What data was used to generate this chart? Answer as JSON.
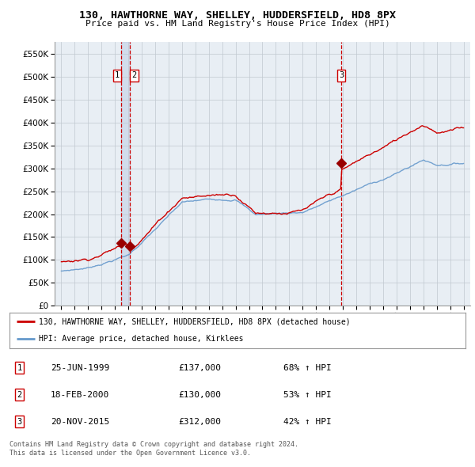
{
  "title": "130, HAWTHORNE WAY, SHELLEY, HUDDERSFIELD, HD8 8PX",
  "subtitle": "Price paid vs. HM Land Registry's House Price Index (HPI)",
  "legend_label_red": "130, HAWTHORNE WAY, SHELLEY, HUDDERSFIELD, HD8 8PX (detached house)",
  "legend_label_blue": "HPI: Average price, detached house, Kirklees",
  "footer1": "Contains HM Land Registry data © Crown copyright and database right 2024.",
  "footer2": "This data is licensed under the Open Government Licence v3.0.",
  "transactions": [
    {
      "num": 1,
      "date": "25-JUN-1999",
      "price": 137000,
      "hpi_pct": "68% ↑ HPI"
    },
    {
      "num": 2,
      "date": "18-FEB-2000",
      "price": 130000,
      "hpi_pct": "53% ↑ HPI"
    },
    {
      "num": 3,
      "date": "20-NOV-2015",
      "price": 312000,
      "hpi_pct": "42% ↑ HPI"
    }
  ],
  "vline_dates": [
    1999.48,
    2000.13,
    2015.89
  ],
  "ylim": [
    0,
    575000
  ],
  "xlim": [
    1994.5,
    2025.5
  ],
  "yticks": [
    0,
    50000,
    100000,
    150000,
    200000,
    250000,
    300000,
    350000,
    400000,
    450000,
    500000,
    550000
  ],
  "xticks": [
    1995,
    1996,
    1997,
    1998,
    1999,
    2000,
    2001,
    2002,
    2003,
    2004,
    2005,
    2006,
    2007,
    2008,
    2009,
    2010,
    2011,
    2012,
    2013,
    2014,
    2015,
    2016,
    2017,
    2018,
    2019,
    2020,
    2021,
    2022,
    2023,
    2024,
    2025
  ],
  "red_color": "#cc0000",
  "blue_color": "#6699cc",
  "vline_color": "#cc0000",
  "background_color": "#ffffff",
  "chart_bg_color": "#e8eef4",
  "grid_color": "#c0c8d0",
  "marker_dot_color": "#990000",
  "label_box_color": "#ffffff",
  "label_box_edge": "#cc0000",
  "shade_color": "#aabbdd"
}
